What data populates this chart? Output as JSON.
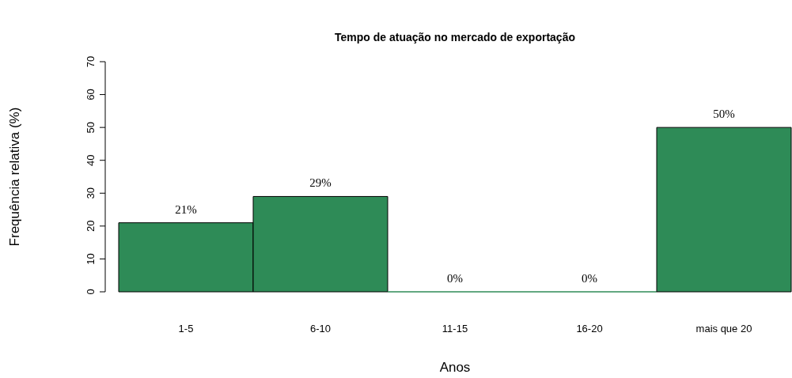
{
  "chart_data": {
    "type": "bar",
    "title": "Tempo de atuação no mercado de exportação",
    "xlabel": "Anos",
    "ylabel": "Frequência relativa (%)",
    "categories": [
      "1-5",
      "6-10",
      "11-15",
      "16-20",
      "mais que 20"
    ],
    "values": [
      21,
      29,
      0,
      0,
      50
    ],
    "value_labels": [
      "21%",
      "29%",
      "0%",
      "0%",
      "50%"
    ],
    "color": "#2e8b57",
    "ylim": [
      0,
      70
    ],
    "yticks": [
      0,
      10,
      20,
      30,
      40,
      50,
      60,
      70
    ],
    "grid": false
  }
}
